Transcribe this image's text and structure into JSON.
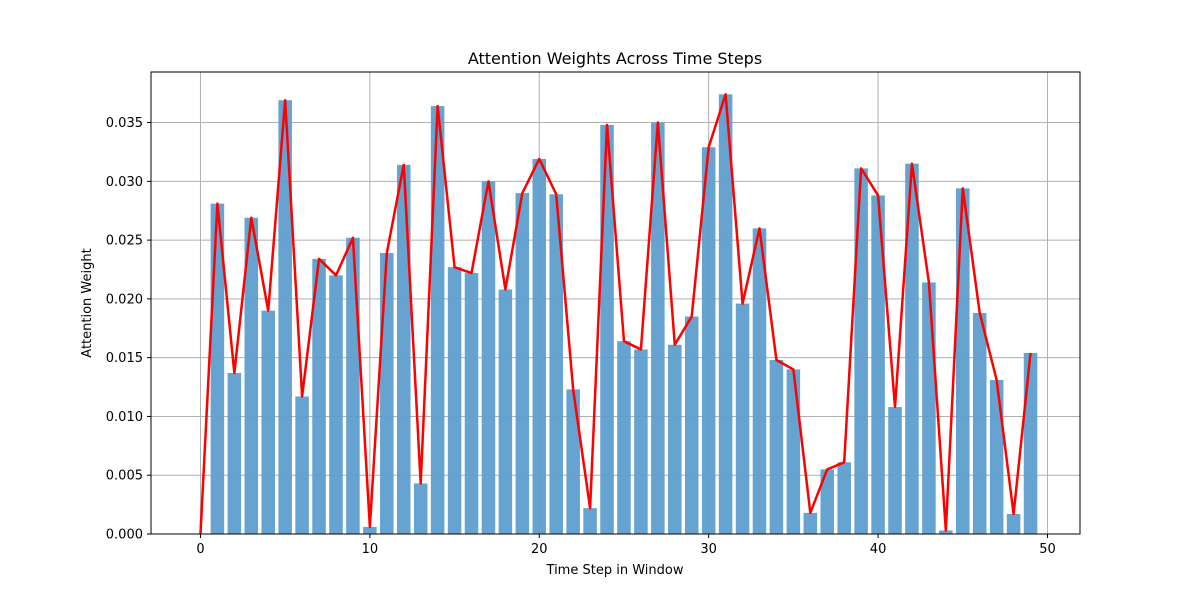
{
  "chart_data": {
    "type": "bar",
    "title": "Attention Weights Across Time Steps",
    "xlabel": "Time Step in Window",
    "ylabel": "Attention Weight",
    "xlim": [
      -2.92,
      51.92
    ],
    "ylim": [
      0,
      0.0393
    ],
    "x_ticks": [
      0,
      10,
      20,
      30,
      40,
      50
    ],
    "x_tick_labels": [
      "0",
      "10",
      "20",
      "30",
      "40",
      "50"
    ],
    "y_ticks": [
      0,
      0.005,
      0.01,
      0.015,
      0.02,
      0.025,
      0.03,
      0.035
    ],
    "y_tick_labels": [
      "0.000",
      "0.005",
      "0.010",
      "0.015",
      "0.020",
      "0.025",
      "0.030",
      "0.035"
    ],
    "grid": true,
    "x": [
      0,
      1,
      2,
      3,
      4,
      5,
      6,
      7,
      8,
      9,
      10,
      11,
      12,
      13,
      14,
      15,
      16,
      17,
      18,
      19,
      20,
      21,
      22,
      23,
      24,
      25,
      26,
      27,
      28,
      29,
      30,
      31,
      32,
      33,
      34,
      35,
      36,
      37,
      38,
      39,
      40,
      41,
      42,
      43,
      44,
      45,
      46,
      47,
      48,
      49
    ],
    "values": [
      0.0,
      0.0281,
      0.0137,
      0.0269,
      0.019,
      0.0369,
      0.0117,
      0.0234,
      0.022,
      0.0252,
      0.0006,
      0.0239,
      0.0314,
      0.0043,
      0.0364,
      0.0227,
      0.0222,
      0.03,
      0.0208,
      0.029,
      0.0319,
      0.0289,
      0.0123,
      0.0022,
      0.0348,
      0.0164,
      0.0157,
      0.035,
      0.0161,
      0.0185,
      0.0329,
      0.0374,
      0.0196,
      0.026,
      0.0148,
      0.014,
      0.0018,
      0.0055,
      0.0061,
      0.0311,
      0.0288,
      0.0108,
      0.0315,
      0.0214,
      0.0003,
      0.0294,
      0.0188,
      0.0131,
      0.0017,
      0.0154
    ],
    "bar_color": "#5f9ecf",
    "bar_opacity": 0.95,
    "line_color": "#ff0000",
    "grid_color": "#b0b0b0"
  }
}
